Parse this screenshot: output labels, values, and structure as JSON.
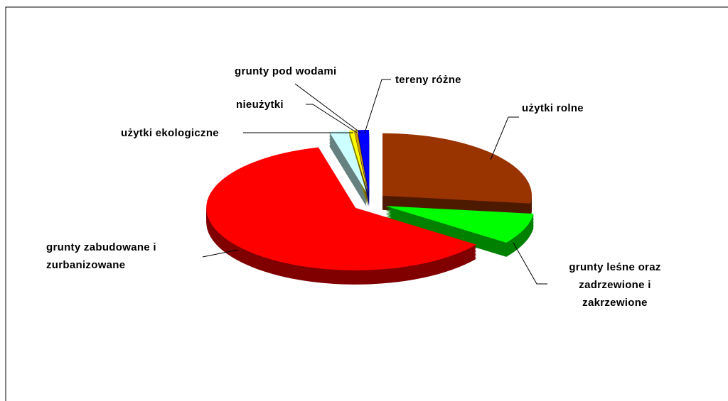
{
  "chart_data": {
    "type": "pie3d",
    "categories": [
      "użytki rolne",
      "grunty leśne oraz zadrzewione i zakrzewione",
      "grunty zabudowane i zurbanizowane",
      "użytki ekologiczne",
      "nieużytki",
      "grunty pod wodami",
      "tereny różne"
    ],
    "values": [
      27,
      8,
      61,
      2,
      0.5,
      0.3,
      1.2
    ],
    "colors": [
      "#993300",
      "#00ff00",
      "#ff0000",
      "#ccffff",
      "#ffff00",
      "#cc9900",
      "#0000ff"
    ]
  }
}
